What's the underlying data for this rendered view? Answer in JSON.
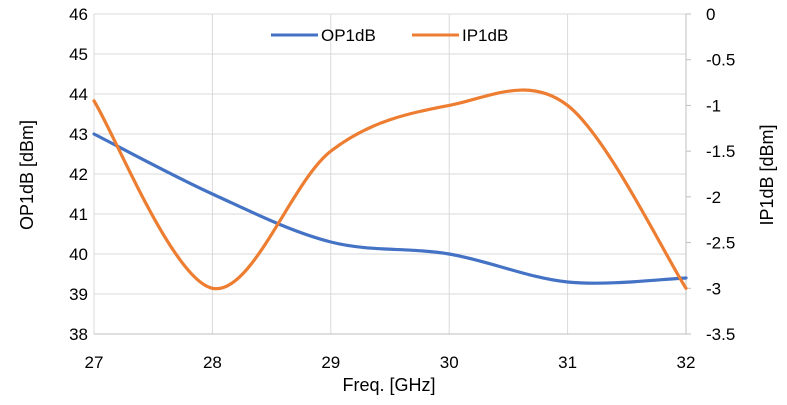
{
  "chart_data": {
    "type": "line",
    "xlabel": "Freq. [GHz]",
    "ylabel_left": "OP1dB [dBm]",
    "ylabel_right": "IP1dB [dBm]",
    "xlim": [
      27,
      32
    ],
    "ylim_left": [
      38,
      46
    ],
    "ylim_right": [
      -3.5,
      0
    ],
    "x_ticks": [
      "27",
      "28",
      "29",
      "30",
      "31",
      "32"
    ],
    "y_left_ticks": [
      "38",
      "39",
      "40",
      "41",
      "42",
      "43",
      "44",
      "45",
      "46"
    ],
    "y_right_ticks": [
      "0",
      "-0.5",
      "-1",
      "-1.5",
      "-2",
      "-2.5",
      "-3",
      "-3.5"
    ],
    "grid": true,
    "legend_position": "top-center",
    "series": [
      {
        "name": "OP1dB",
        "axis": "left",
        "color": "#4472c4",
        "x": [
          27,
          28,
          29,
          30,
          31,
          32
        ],
        "y": [
          43.0,
          41.5,
          40.3,
          40.0,
          39.3,
          39.4
        ]
      },
      {
        "name": "IP1dB",
        "axis": "right",
        "color": "#ed7d31",
        "x": [
          27,
          28,
          29,
          30,
          31,
          32
        ],
        "y": [
          -0.95,
          -3.0,
          -1.5,
          -1.0,
          -1.0,
          -3.0
        ]
      }
    ]
  }
}
